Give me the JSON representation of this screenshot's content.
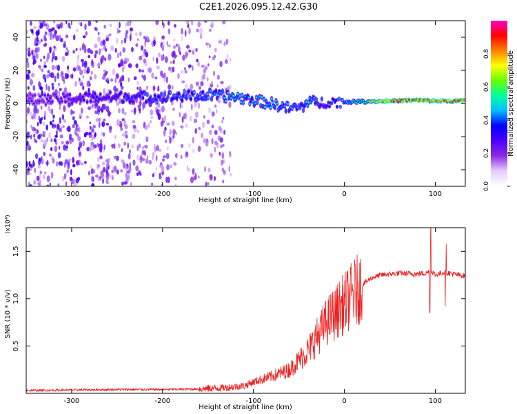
{
  "figure": {
    "title": "C2E1.2026.095.12.42.G30"
  },
  "chart_data": [
    {
      "type": "heatmap",
      "title": "C2E1.2026.095.12.42.G30",
      "xlabel": "Height of straight line (km)",
      "ylabel": "Frequency (Hz)",
      "xlim": [
        -350,
        133
      ],
      "ylim": [
        -50,
        50
      ],
      "x_ticks": [
        -300,
        -200,
        -100,
        0,
        100
      ],
      "y_ticks": [
        -40,
        -20,
        0,
        20,
        40
      ],
      "x_tick_labels": [
        "-300",
        "-200",
        "-100",
        "0",
        "100"
      ],
      "y_tick_labels": [
        "-40",
        "-20",
        "0",
        "20",
        "40"
      ],
      "colorbar": {
        "label": "Normalized spectral amplitude",
        "range": [
          0,
          1
        ],
        "ticks": [
          0.0,
          0.2,
          0.4,
          0.6,
          0.8
        ],
        "tick_labels": [
          "0.0",
          "0.2",
          "0.4",
          "0.6",
          "0.8"
        ],
        "colormap": [
          "#ffffff",
          "#e6ccff",
          "#8a2be2",
          "#4b00ff",
          "#0000ff",
          "#00bfff",
          "#00ffa0",
          "#66ff00",
          "#ffff00",
          "#ff8000",
          "#ff0000",
          "#ff00c8"
        ]
      },
      "ridge": {
        "description_points_x": [
          -350,
          -300,
          -250,
          -200,
          -150,
          -120,
          -100,
          -80,
          -60,
          -45,
          -40,
          -30,
          -20,
          0,
          50,
          80,
          100,
          133
        ],
        "description_points_y": [
          2,
          3,
          4,
          4,
          5,
          4,
          2,
          0,
          -3,
          -2,
          2,
          0,
          1,
          1,
          1.5,
          2,
          1.5,
          1.5
        ],
        "amplitude": [
          0.25,
          0.3,
          0.35,
          0.4,
          0.45,
          0.5,
          0.45,
          0.5,
          0.45,
          0.4,
          0.55,
          0.4,
          0.35,
          0.45,
          0.85,
          0.9,
          0.85,
          0.9
        ]
      },
      "noise_region": {
        "x_range": [
          -350,
          -125
        ],
        "y_range": [
          -50,
          50
        ],
        "amplitude_max": 0.25
      }
    },
    {
      "type": "line",
      "xlabel": "Height of straight line (km)",
      "ylabel": "SNR (10 * v/v)",
      "y_multiplier": "(x10⁴)",
      "xlim": [
        -350,
        133
      ],
      "ylim": [
        0,
        1.75
      ],
      "x_ticks": [
        -300,
        -200,
        -100,
        0,
        100
      ],
      "y_ticks": [
        0.5,
        1.0,
        1.5
      ],
      "x_tick_labels": [
        "-300",
        "-200",
        "-100",
        "0",
        "100"
      ],
      "y_tick_labels": [
        "0.5",
        "1.0",
        "1.5"
      ],
      "color": "#ee2020",
      "series": [
        {
          "x": [
            -350,
            -300,
            -250,
            -200,
            -160,
            -130,
            -110,
            -100,
            -80,
            -60,
            -50,
            -40,
            -30,
            -20,
            -10,
            0,
            10,
            20,
            30,
            40,
            60,
            80,
            90,
            95,
            100,
            110,
            120,
            133
          ],
          "y": [
            0.03,
            0.035,
            0.04,
            0.04,
            0.045,
            0.06,
            0.08,
            0.12,
            0.18,
            0.25,
            0.35,
            0.45,
            0.6,
            0.75,
            0.85,
            0.95,
            1.05,
            1.15,
            1.22,
            1.25,
            1.27,
            1.26,
            1.27,
            1.3,
            1.25,
            1.28,
            1.26,
            1.24
          ]
        }
      ],
      "spikes": [
        {
          "x": 95,
          "y": 1.75
        },
        {
          "x": 94,
          "y": 0.85
        },
        {
          "x": 112,
          "y": 1.58
        },
        {
          "x": 111,
          "y": 0.92
        }
      ]
    }
  ]
}
